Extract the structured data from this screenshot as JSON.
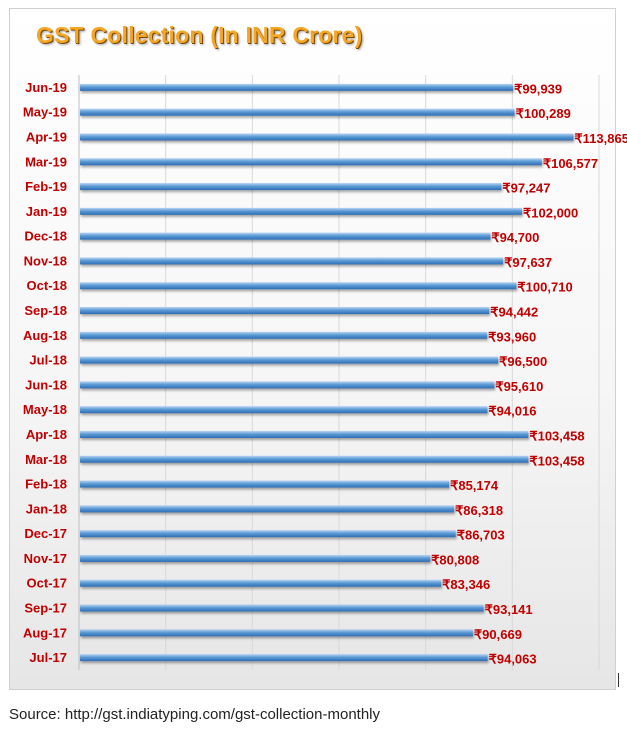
{
  "colors": {
    "title": "#f5a623",
    "bar_top": "#b9d4f3",
    "bar_mid": "#5b9bd5",
    "bar_bottom": "#2e6db4",
    "label": "#c00000",
    "grid": "#d9d9d9",
    "source_text": "#222222"
  },
  "source": "Source: http://gst.indiatyping.com/gst-collection-monthly",
  "chart_data": {
    "type": "bar",
    "orientation": "horizontal",
    "title": "GST Collection (In INR Crore)",
    "xlabel": "",
    "ylabel": "",
    "xlim": [
      0,
      120000
    ],
    "grid": true,
    "value_prefix": "₹",
    "categories": [
      "Jun-19",
      "May-19",
      "Apr-19",
      "Mar-19",
      "Feb-19",
      "Jan-19",
      "Dec-18",
      "Nov-18",
      "Oct-18",
      "Sep-18",
      "Aug-18",
      "Jul-18",
      "Jun-18",
      "May-18",
      "Apr-18",
      "Mar-18",
      "Feb-18",
      "Jan-18",
      "Dec-17",
      "Nov-17",
      "Oct-17",
      "Sep-17",
      "Aug-17",
      "Jul-17"
    ],
    "values": [
      99939,
      100289,
      113865,
      106577,
      97247,
      102000,
      94700,
      97637,
      100710,
      94442,
      93960,
      96500,
      95610,
      94016,
      103458,
      103458,
      85174,
      86318,
      86703,
      80808,
      83346,
      93141,
      90669,
      94063
    ],
    "value_labels": [
      "₹99,939",
      "₹100,289",
      "₹113,865",
      "₹106,577",
      "₹97,247",
      "₹102,000",
      "₹94,700",
      "₹97,637",
      "₹100,710",
      "₹94,442",
      "₹93,960",
      "₹96,500",
      "₹95,610",
      "₹94,016",
      "₹103,458",
      "₹103,458",
      "₹85,174",
      "₹86,318",
      "₹86,703",
      "₹80,808",
      "₹83,346",
      "₹93,141",
      "₹90,669",
      "₹94,063"
    ]
  }
}
